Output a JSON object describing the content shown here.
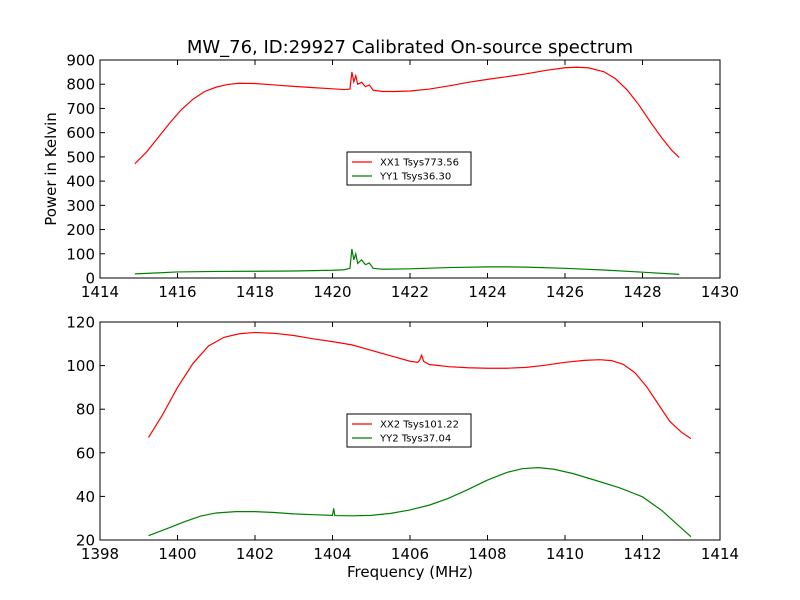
{
  "figure": {
    "title": "MW_76, ID:29927 Calibrated On-source spectrum"
  },
  "chart_data": [
    {
      "type": "line",
      "title": "MW_76, ID:29927 Calibrated On-source spectrum",
      "xlabel": "",
      "ylabel": "Power in Kelvin",
      "xlim": [
        1414,
        1430
      ],
      "ylim": [
        0,
        900
      ],
      "xticks": [
        1414,
        1416,
        1418,
        1420,
        1422,
        1424,
        1426,
        1428,
        1430
      ],
      "yticks": [
        0,
        100,
        200,
        300,
        400,
        500,
        600,
        700,
        800,
        900
      ],
      "grid": false,
      "legend": "center",
      "series": [
        {
          "name": "XX1 Tsys773.56",
          "color": "#ff0000",
          "points": [
            [
              1414.9,
              472
            ],
            [
              1415.2,
              520
            ],
            [
              1415.5,
              580
            ],
            [
              1415.8,
              640
            ],
            [
              1416.1,
              695
            ],
            [
              1416.4,
              738
            ],
            [
              1416.7,
              770
            ],
            [
              1417.0,
              788
            ],
            [
              1417.3,
              799
            ],
            [
              1417.6,
              804
            ],
            [
              1418.0,
              803
            ],
            [
              1418.5,
              797
            ],
            [
              1419.0,
              791
            ],
            [
              1419.5,
              786
            ],
            [
              1420.0,
              781
            ],
            [
              1420.3,
              778
            ],
            [
              1420.45,
              780
            ],
            [
              1420.5,
              850
            ],
            [
              1420.55,
              810
            ],
            [
              1420.6,
              835
            ],
            [
              1420.65,
              800
            ],
            [
              1420.75,
              808
            ],
            [
              1420.85,
              790
            ],
            [
              1420.95,
              797
            ],
            [
              1421.05,
              775
            ],
            [
              1421.3,
              770
            ],
            [
              1421.6,
              770
            ],
            [
              1422.0,
              772
            ],
            [
              1422.5,
              780
            ],
            [
              1423.0,
              793
            ],
            [
              1423.5,
              808
            ],
            [
              1424.0,
              820
            ],
            [
              1424.5,
              831
            ],
            [
              1425.0,
              843
            ],
            [
              1425.5,
              857
            ],
            [
              1426.0,
              868
            ],
            [
              1426.3,
              870
            ],
            [
              1426.6,
              868
            ],
            [
              1427.0,
              852
            ],
            [
              1427.3,
              823
            ],
            [
              1427.6,
              777
            ],
            [
              1427.9,
              716
            ],
            [
              1428.2,
              645
            ],
            [
              1428.5,
              578
            ],
            [
              1428.75,
              528
            ],
            [
              1428.95,
              497
            ]
          ]
        },
        {
          "name": "YY1 Tsys36.30",
          "color": "#008000",
          "points": [
            [
              1414.9,
              17
            ],
            [
              1415.5,
              21
            ],
            [
              1416.0,
              25
            ],
            [
              1417.0,
              27
            ],
            [
              1418.0,
              28
            ],
            [
              1419.0,
              29
            ],
            [
              1420.0,
              32
            ],
            [
              1420.3,
              34
            ],
            [
              1420.45,
              40
            ],
            [
              1420.5,
              120
            ],
            [
              1420.55,
              75
            ],
            [
              1420.6,
              100
            ],
            [
              1420.65,
              60
            ],
            [
              1420.75,
              75
            ],
            [
              1420.85,
              55
            ],
            [
              1420.95,
              62
            ],
            [
              1421.05,
              40
            ],
            [
              1421.3,
              36
            ],
            [
              1422.0,
              38
            ],
            [
              1423.0,
              43
            ],
            [
              1424.0,
              46
            ],
            [
              1424.5,
              46
            ],
            [
              1425.0,
              45
            ],
            [
              1426.0,
              40
            ],
            [
              1427.0,
              33
            ],
            [
              1428.0,
              24
            ],
            [
              1428.95,
              15
            ]
          ]
        }
      ]
    },
    {
      "type": "line",
      "title": "",
      "xlabel": "Frequency (MHz)",
      "ylabel": "",
      "xlim": [
        1398,
        1414
      ],
      "ylim": [
        20,
        120
      ],
      "xticks": [
        1398,
        1400,
        1402,
        1404,
        1406,
        1408,
        1410,
        1412,
        1414
      ],
      "yticks": [
        20,
        40,
        60,
        80,
        100,
        120
      ],
      "grid": false,
      "legend": "center",
      "series": [
        {
          "name": "XX2 Tsys101.22",
          "color": "#ff0000",
          "points": [
            [
              1399.25,
              67
            ],
            [
              1399.6,
              77
            ],
            [
              1400.0,
              90
            ],
            [
              1400.4,
              101
            ],
            [
              1400.8,
              109
            ],
            [
              1401.2,
              113
            ],
            [
              1401.6,
              114.6
            ],
            [
              1402.0,
              115.2
            ],
            [
              1402.5,
              114.8
            ],
            [
              1403.0,
              113.8
            ],
            [
              1403.5,
              112.3
            ],
            [
              1404.0,
              111
            ],
            [
              1404.5,
              109.5
            ],
            [
              1405.0,
              107
            ],
            [
              1405.5,
              104.5
            ],
            [
              1406.0,
              102
            ],
            [
              1406.2,
              101.5
            ],
            [
              1406.25,
              102.5
            ],
            [
              1406.3,
              104.8
            ],
            [
              1406.35,
              102
            ],
            [
              1406.5,
              100.5
            ],
            [
              1407.0,
              99.5
            ],
            [
              1407.5,
              99
            ],
            [
              1408.0,
              98.8
            ],
            [
              1408.5,
              98.8
            ],
            [
              1409.0,
              99.2
            ],
            [
              1409.5,
              100.2
            ],
            [
              1410.0,
              101.5
            ],
            [
              1410.5,
              102.4
            ],
            [
              1410.9,
              102.7
            ],
            [
              1411.2,
              102.3
            ],
            [
              1411.5,
              100.6
            ],
            [
              1411.8,
              96.8
            ],
            [
              1412.1,
              90.5
            ],
            [
              1412.4,
              82.5
            ],
            [
              1412.7,
              74.5
            ],
            [
              1413.0,
              69.5
            ],
            [
              1413.25,
              66.5
            ]
          ]
        },
        {
          "name": "YY2 Tsys37.04",
          "color": "#008000",
          "points": [
            [
              1399.25,
              22
            ],
            [
              1399.7,
              25
            ],
            [
              1400.2,
              28.5
            ],
            [
              1400.6,
              31
            ],
            [
              1401.0,
              32.4
            ],
            [
              1401.5,
              33
            ],
            [
              1402.0,
              33
            ],
            [
              1402.5,
              32.6
            ],
            [
              1403.0,
              32
            ],
            [
              1403.5,
              31.6
            ],
            [
              1404.0,
              31.3
            ],
            [
              1404.03,
              34.5
            ],
            [
              1404.06,
              31.2
            ],
            [
              1404.5,
              31.1
            ],
            [
              1405.0,
              31.3
            ],
            [
              1405.5,
              32.2
            ],
            [
              1406.0,
              33.8
            ],
            [
              1406.5,
              36
            ],
            [
              1407.0,
              39.2
            ],
            [
              1407.5,
              43.2
            ],
            [
              1408.0,
              47.5
            ],
            [
              1408.5,
              51
            ],
            [
              1408.9,
              52.7
            ],
            [
              1409.3,
              53.2
            ],
            [
              1409.7,
              52.5
            ],
            [
              1410.2,
              50.5
            ],
            [
              1410.8,
              47.3
            ],
            [
              1411.4,
              44
            ],
            [
              1412.0,
              39.8
            ],
            [
              1412.5,
              33.5
            ],
            [
              1413.0,
              25.5
            ],
            [
              1413.25,
              21.5
            ]
          ]
        }
      ]
    }
  ]
}
